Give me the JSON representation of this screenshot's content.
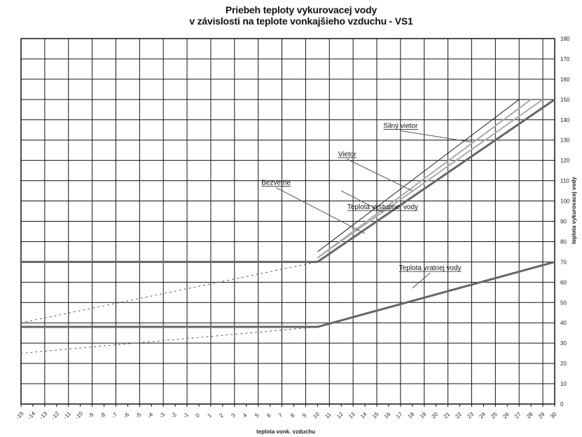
{
  "chart_data": {
    "type": "line",
    "title": "Priebeh teploty vykurovacej vody",
    "subtitle": "v závislosti na teplote vonkajšieho vzduchu - VS1",
    "xlabel": "teplota vonk. vzduchu",
    "ylabel": "teplota vykurovacej vody",
    "xlim": [
      -15,
      30
    ],
    "ylim": [
      0,
      180
    ],
    "y_ticks": [
      0,
      10,
      20,
      30,
      40,
      50,
      60,
      70,
      80,
      90,
      100,
      110,
      120,
      130,
      140,
      150,
      160,
      170,
      180
    ],
    "x_ticks": [
      -15,
      -14,
      -13,
      -12,
      -11,
      -10,
      -9,
      -8,
      -7,
      -6,
      -5,
      -4,
      -3,
      -2,
      -1,
      0,
      1,
      2,
      3,
      4,
      5,
      6,
      7,
      8,
      9,
      10,
      11,
      12,
      13,
      14,
      15,
      16,
      17,
      18,
      19,
      20,
      21,
      22,
      23,
      24,
      25,
      26,
      27,
      28,
      29,
      30
    ],
    "grid": true,
    "legend": "none",
    "series": [
      {
        "name": "Teplota vratnej vody",
        "style": "solid",
        "color": "#666666",
        "width": 3,
        "x": [
          30,
          10,
          1,
          -15
        ],
        "y": [
          70,
          38,
          38,
          38
        ]
      },
      {
        "name": "Teplota výstupnej vody",
        "style": "solid",
        "color": "#666666",
        "width": 3,
        "x": [
          30,
          10,
          1,
          -15
        ],
        "y": [
          150,
          70,
          70,
          70
        ]
      },
      {
        "name": "Bezvetrie",
        "style": "solid",
        "color": "#aaaaaa",
        "width": 2,
        "x": [
          28,
          10
        ],
        "y": [
          150,
          72
        ]
      },
      {
        "name": "Vietor",
        "style": "solid",
        "color": "#aaaaaa",
        "width": 2,
        "x": [
          29,
          10
        ],
        "y": [
          150,
          72
        ]
      },
      {
        "name": "Silný vietor",
        "style": "solid",
        "color": "#222222",
        "width": 1,
        "x": [
          27,
          10
        ],
        "y": [
          150,
          75
        ]
      },
      {
        "name": "",
        "style": "dotted",
        "color": "#555555",
        "width": 1,
        "x": [
          -15,
          10
        ],
        "y": [
          40,
          70
        ]
      },
      {
        "name": "",
        "style": "dotted",
        "color": "#555555",
        "width": 1,
        "x": [
          -15,
          10
        ],
        "y": [
          25,
          38
        ]
      }
    ],
    "annotations": [
      {
        "text": "Silný vietor",
        "x": 17,
        "y": 136,
        "target_x": 23,
        "target_y": 129
      },
      {
        "text": "Vietor",
        "x": 12.5,
        "y": 122,
        "target_x": 18,
        "target_y": 105
      },
      {
        "text": "Bezvetrie",
        "x": 6.5,
        "y": 108,
        "target_x": 14,
        "target_y": 84
      },
      {
        "text": "Teplota výstupnej vody",
        "x": 15.5,
        "y": 96,
        "target_x": 12,
        "target_y": 105
      },
      {
        "text": "Teplota vratnej vody",
        "x": 19.5,
        "y": 66,
        "target_x": 18,
        "target_y": 57
      }
    ]
  }
}
